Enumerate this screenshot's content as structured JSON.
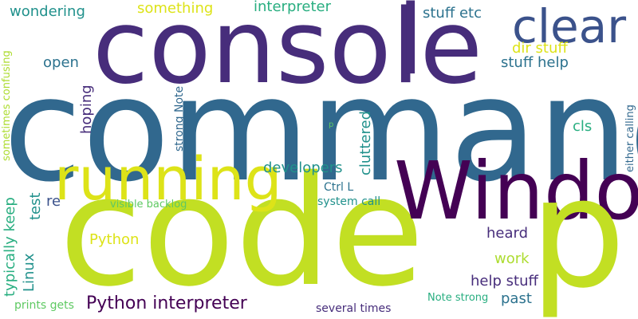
{
  "colors": {
    "background": "#ffffff",
    "dark_purple": "#440154",
    "indigo": "#472d7b",
    "blue": "#3b528b",
    "steel_blue": "#31688e",
    "teal_blue": "#2c728e",
    "teal": "#21918c",
    "green_teal": "#28ae80",
    "green": "#5ec962",
    "lime": "#addc30",
    "yellow_green": "#c2df23",
    "yellow": "#dde318"
  },
  "words": {
    "command": "command",
    "code": "code",
    "console": "console",
    "window": "Window",
    "p_big": "p",
    "running": "running",
    "clear": "clear",
    "l": "l",
    "python_interpreter": "Python interpreter",
    "interpreter": "interpreter",
    "something": "something",
    "wondering": "wondering",
    "stuff_etc": "stuff etc",
    "dir_stuff": "dir stuff",
    "stuff_help": "stuff help",
    "help_stuff": "help stuff",
    "open": "open",
    "hoping": "hoping",
    "cls": "cls",
    "developers": "developers",
    "cluttered": "cluttered",
    "ctrl_l": "Ctrl L",
    "system_call": "system call",
    "visible_backlog": "visible backlog",
    "python": "Python",
    "heard": "heard",
    "work": "work",
    "past": "past",
    "several_times": "several times",
    "note_strong_h": "Note strong",
    "strong_note_v": "strong Note",
    "either_calling": "either calling",
    "sometimes_confusing": "sometimes confusing",
    "typically_keep": "typically keep",
    "test": "test",
    "re": "re",
    "linux": "Linux",
    "prints_gets": "prints gets",
    "p_small": "p"
  }
}
